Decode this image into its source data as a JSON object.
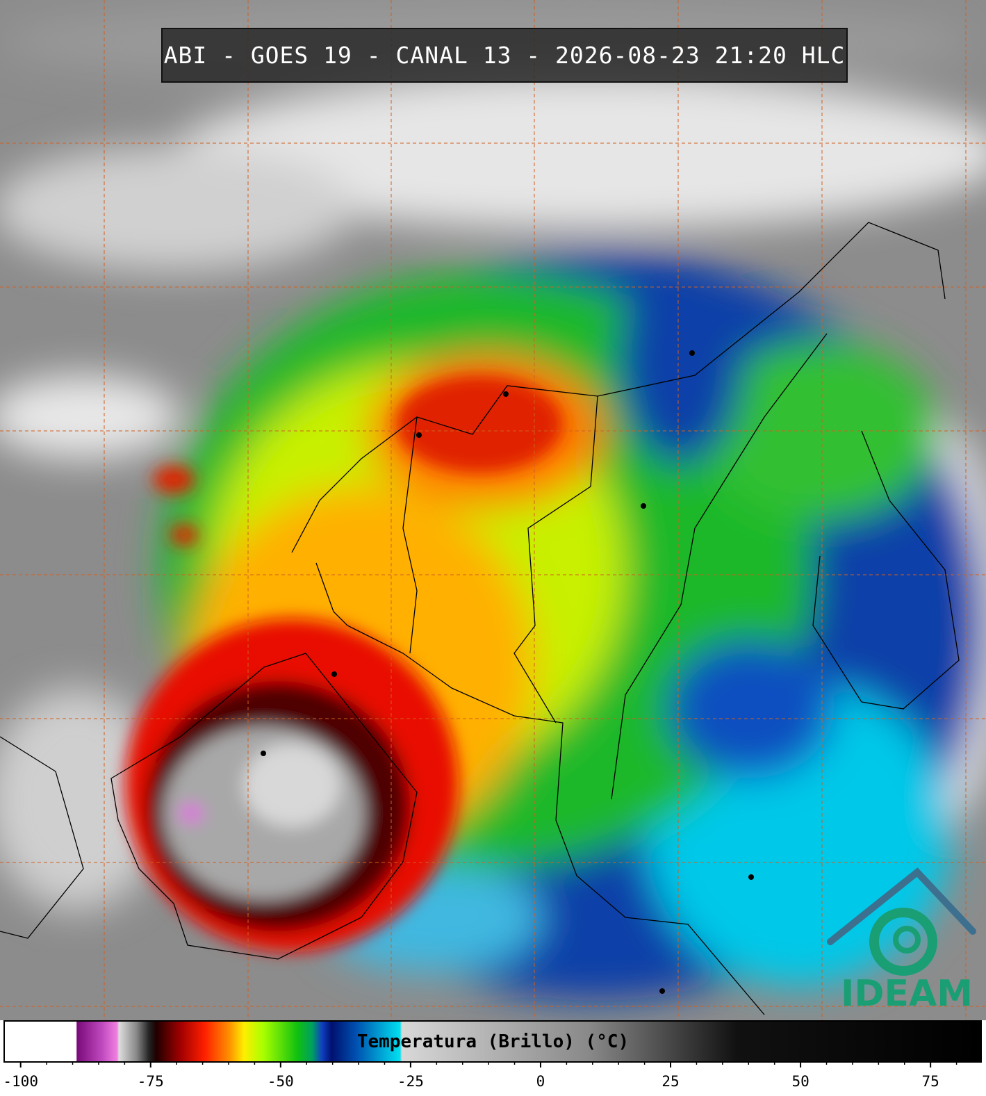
{
  "header": {
    "title": "ABI - GOES 19 - CANAL 13 - 2026-08-23 21:20 HLC"
  },
  "colorbar": {
    "label": "Temperatura (Brillo) (°C)",
    "lim": [
      -103.3,
      84.6
    ],
    "ticks": [
      -100,
      -75,
      -50,
      -25,
      0,
      25,
      50,
      75
    ],
    "minor_ticks": [
      -95,
      -90,
      -85,
      -80,
      -70,
      -65,
      -60,
      -55,
      -45,
      -40,
      -35,
      -30,
      -20,
      -15,
      -10,
      -5,
      5,
      10,
      15,
      20,
      30,
      35,
      40,
      45,
      55,
      60,
      65,
      70,
      80
    ]
  },
  "logo": {
    "text": "IDEAM"
  }
}
